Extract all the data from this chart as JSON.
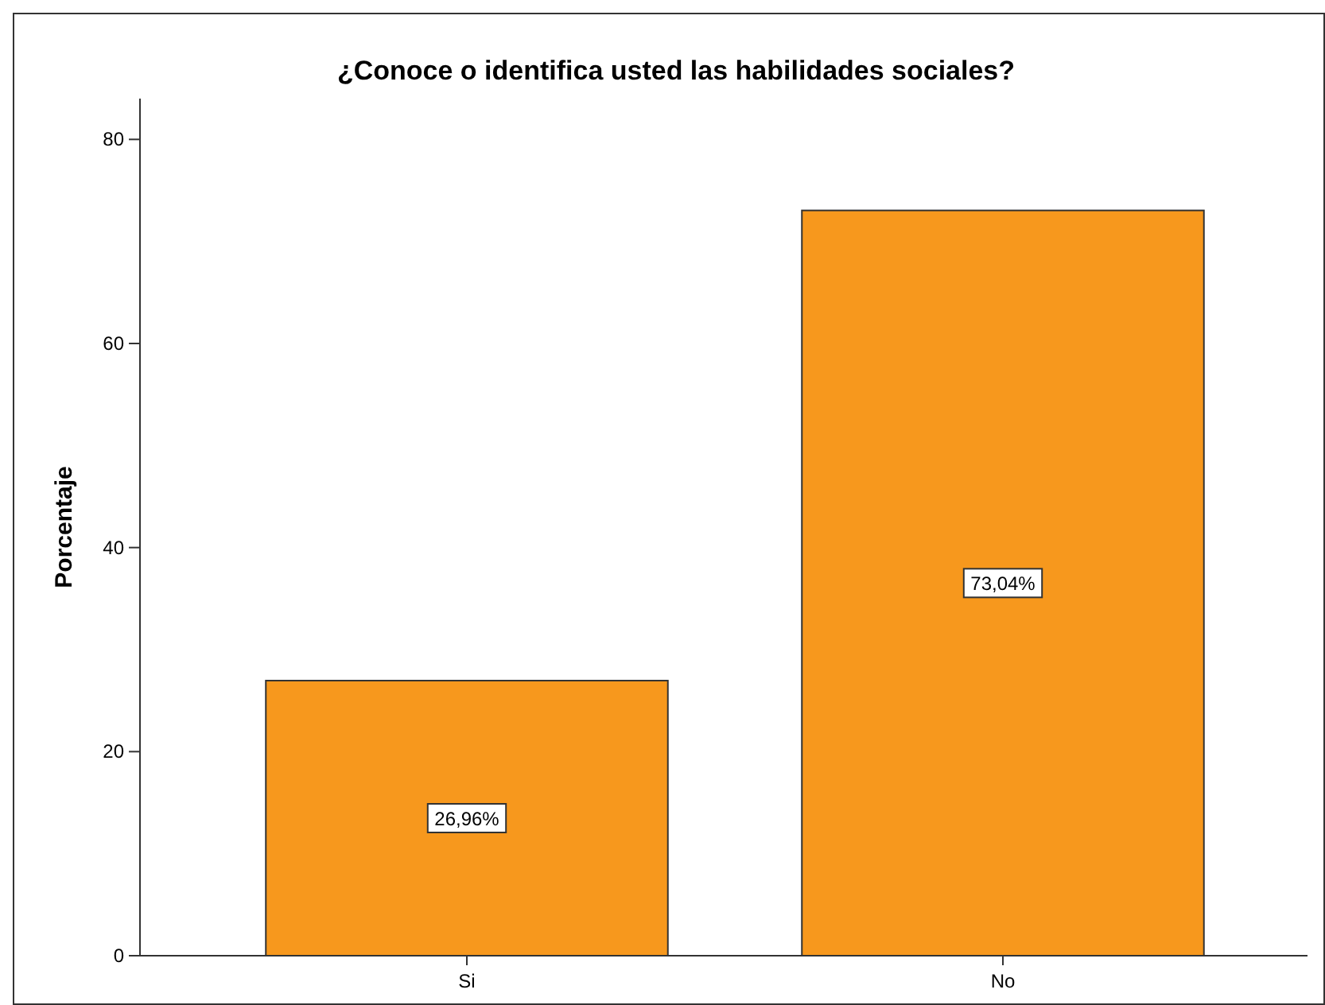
{
  "chart_data": {
    "type": "bar",
    "title": "¿Conoce o identifica usted las habilidades sociales?",
    "ylabel": "Porcentaje",
    "categories": [
      "Si",
      "No"
    ],
    "values": [
      26.96,
      73.04
    ],
    "value_labels": [
      "26,96%",
      "73,04%"
    ],
    "color": "#f7981d",
    "ylim": [
      0,
      84
    ],
    "yticks": [
      0,
      20,
      40,
      60,
      80
    ],
    "grid": false
  }
}
